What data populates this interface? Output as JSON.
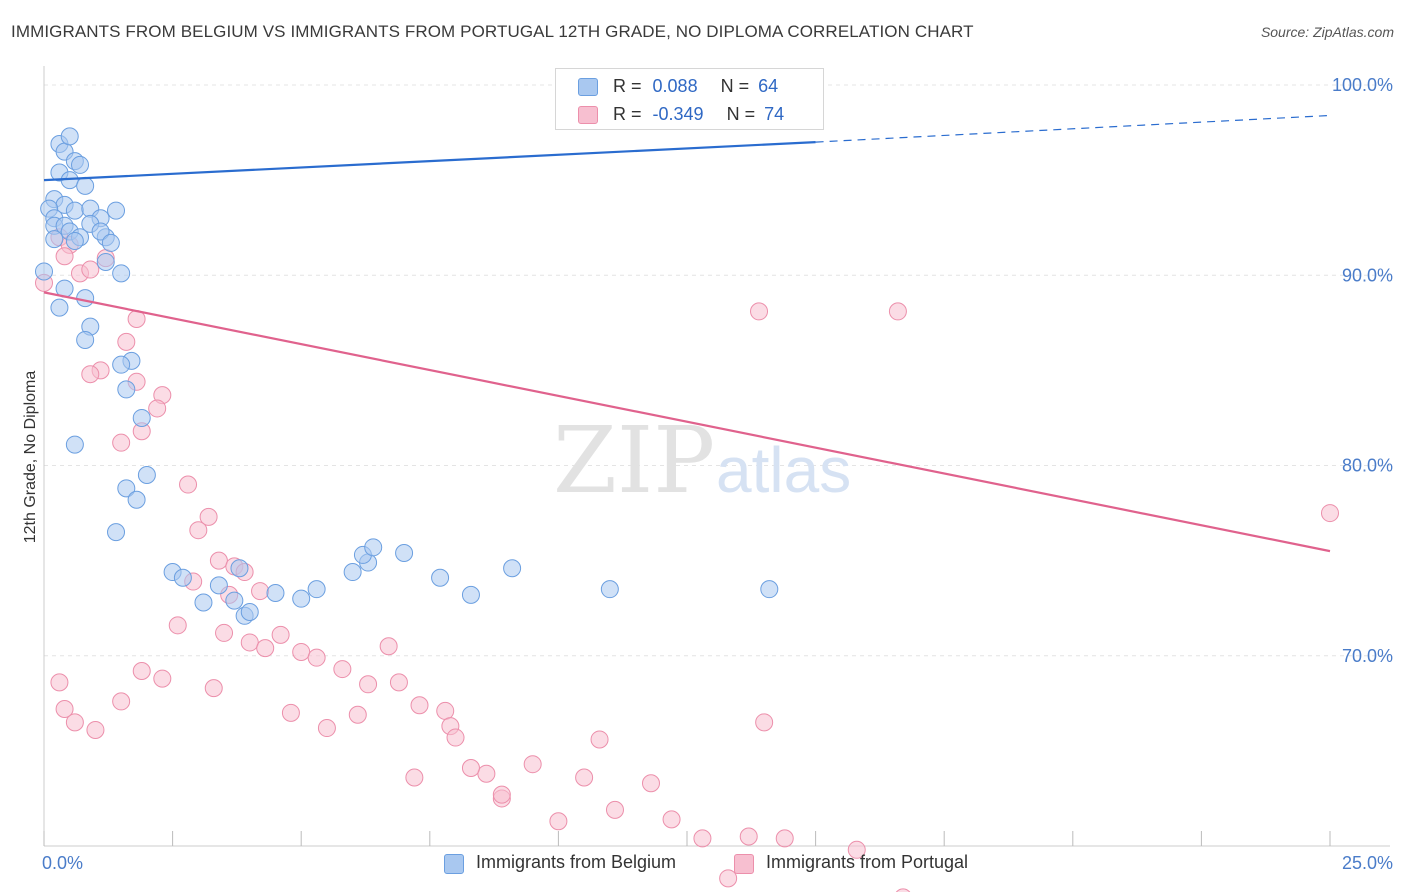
{
  "title": "IMMIGRANTS FROM BELGIUM VS IMMIGRANTS FROM PORTUGAL 12TH GRADE, NO DIPLOMA CORRELATION CHART",
  "source": "Source: ZipAtlas.com",
  "watermark": {
    "zip": "ZIP",
    "atlas": "atlas"
  },
  "colors": {
    "belgium_fill": "#a9c8f0",
    "belgium_stroke": "#6b9fe0",
    "belgium_line": "#2a6ccf",
    "portugal_fill": "#f7bfd0",
    "portugal_stroke": "#ec8fab",
    "portugal_line": "#e0628d",
    "tick_text": "#4a7cc9"
  },
  "legend": {
    "belgium": {
      "r_label": "R =",
      "r_value": "0.088",
      "n_label": "N =",
      "n_value": "64"
    },
    "portugal": {
      "r_label": "R =",
      "r_value": "-0.349",
      "n_label": "N =",
      "n_value": "74"
    }
  },
  "chart_data": {
    "type": "scatter",
    "title": "IMMIGRANTS FROM BELGIUM VS IMMIGRANTS FROM PORTUGAL 12TH GRADE, NO DIPLOMA CORRELATION CHART",
    "xlabel": "",
    "ylabel": "12th Grade, No Diploma",
    "xlim": [
      0,
      25
    ],
    "ylim": [
      60,
      101
    ],
    "x_tick_labels": [
      "0.0%",
      "25.0%"
    ],
    "y_ticks": [
      70,
      80,
      90,
      100
    ],
    "y_tick_labels": [
      "70.0%",
      "80.0%",
      "90.0%",
      "100.0%"
    ],
    "grid": true,
    "series": [
      {
        "name": "Immigrants from Belgium",
        "trend": {
          "x0": 0,
          "y0": 95.0,
          "x1": 15,
          "y1": 97.0,
          "dashed_to_x": 25,
          "dashed_to_y": 98.4
        },
        "points": [
          [
            0.3,
            96.9
          ],
          [
            0.4,
            96.5
          ],
          [
            0.5,
            97.3
          ],
          [
            0.6,
            96.0
          ],
          [
            0.7,
            95.8
          ],
          [
            0.3,
            95.4
          ],
          [
            0.5,
            95.0
          ],
          [
            0.8,
            94.7
          ],
          [
            0.2,
            94.0
          ],
          [
            0.4,
            93.7
          ],
          [
            0.6,
            93.4
          ],
          [
            0.9,
            93.5
          ],
          [
            1.1,
            93.0
          ],
          [
            0.9,
            92.7
          ],
          [
            1.2,
            92.0
          ],
          [
            1.4,
            93.4
          ],
          [
            0.1,
            93.5
          ],
          [
            0.2,
            93.0
          ],
          [
            0.2,
            92.6
          ],
          [
            0.4,
            92.6
          ],
          [
            0.5,
            92.3
          ],
          [
            0.7,
            92.0
          ],
          [
            0.6,
            91.8
          ],
          [
            0.2,
            91.9
          ],
          [
            1.1,
            92.3
          ],
          [
            1.3,
            91.7
          ],
          [
            1.5,
            90.1
          ],
          [
            1.2,
            90.7
          ],
          [
            0.4,
            89.3
          ],
          [
            0.8,
            88.8
          ],
          [
            0.3,
            88.3
          ],
          [
            0.9,
            87.3
          ],
          [
            0.8,
            86.6
          ],
          [
            1.7,
            85.5
          ],
          [
            1.5,
            85.3
          ],
          [
            1.6,
            84.0
          ],
          [
            1.9,
            82.5
          ],
          [
            0.6,
            81.1
          ],
          [
            2.0,
            79.5
          ],
          [
            1.6,
            78.8
          ],
          [
            1.8,
            78.2
          ],
          [
            1.4,
            76.5
          ],
          [
            2.5,
            74.4
          ],
          [
            2.7,
            74.1
          ],
          [
            3.1,
            72.8
          ],
          [
            3.4,
            73.7
          ],
          [
            3.9,
            72.1
          ],
          [
            3.7,
            72.9
          ],
          [
            4.0,
            72.3
          ],
          [
            5.0,
            73.0
          ],
          [
            4.5,
            73.3
          ],
          [
            5.3,
            73.5
          ],
          [
            6.0,
            74.4
          ],
          [
            3.8,
            74.6
          ],
          [
            6.3,
            74.9
          ],
          [
            6.2,
            75.3
          ],
          [
            6.4,
            75.7
          ],
          [
            7.0,
            75.4
          ],
          [
            7.7,
            74.1
          ],
          [
            8.3,
            73.2
          ],
          [
            9.1,
            74.6
          ],
          [
            11.0,
            73.5
          ],
          [
            14.1,
            73.5
          ],
          [
            0.0,
            90.2
          ]
        ]
      },
      {
        "name": "Immigrants from Portugal",
        "trend": {
          "x0": 0,
          "y0": 89.1,
          "x1": 25,
          "y1": 75.5
        },
        "points": [
          [
            0.3,
            92.0
          ],
          [
            0.5,
            91.6
          ],
          [
            0.4,
            91.0
          ],
          [
            0.7,
            90.1
          ],
          [
            0.9,
            90.3
          ],
          [
            1.2,
            90.9
          ],
          [
            1.8,
            87.7
          ],
          [
            1.6,
            86.5
          ],
          [
            1.1,
            85.0
          ],
          [
            0.9,
            84.8
          ],
          [
            1.8,
            84.4
          ],
          [
            2.3,
            83.7
          ],
          [
            2.2,
            83.0
          ],
          [
            1.9,
            81.8
          ],
          [
            1.5,
            81.2
          ],
          [
            2.8,
            79.0
          ],
          [
            3.2,
            77.3
          ],
          [
            3.0,
            76.6
          ],
          [
            3.4,
            75.0
          ],
          [
            3.7,
            74.7
          ],
          [
            3.9,
            74.4
          ],
          [
            4.2,
            73.4
          ],
          [
            2.9,
            73.9
          ],
          [
            3.6,
            73.2
          ],
          [
            2.6,
            71.6
          ],
          [
            3.5,
            71.2
          ],
          [
            4.6,
            71.1
          ],
          [
            4.0,
            70.7
          ],
          [
            4.3,
            70.4
          ],
          [
            5.0,
            70.2
          ],
          [
            5.3,
            69.9
          ],
          [
            5.8,
            69.3
          ],
          [
            6.7,
            70.5
          ],
          [
            6.3,
            68.5
          ],
          [
            6.9,
            68.6
          ],
          [
            7.3,
            67.4
          ],
          [
            7.8,
            67.1
          ],
          [
            7.9,
            66.3
          ],
          [
            8.0,
            65.7
          ],
          [
            8.6,
            63.8
          ],
          [
            8.9,
            62.5
          ],
          [
            10.0,
            61.3
          ],
          [
            10.5,
            63.6
          ],
          [
            11.1,
            61.9
          ],
          [
            12.2,
            61.4
          ],
          [
            11.8,
            63.3
          ],
          [
            12.8,
            60.4
          ],
          [
            13.7,
            60.5
          ],
          [
            14.0,
            66.5
          ],
          [
            13.3,
            58.3
          ],
          [
            14.4,
            60.4
          ],
          [
            15.1,
            56.8
          ],
          [
            16.7,
            57.3
          ],
          [
            15.8,
            59.8
          ],
          [
            6.1,
            66.9
          ],
          [
            8.3,
            64.1
          ],
          [
            8.9,
            62.7
          ],
          [
            9.5,
            64.3
          ],
          [
            10.8,
            65.6
          ],
          [
            7.2,
            63.6
          ],
          [
            5.5,
            66.2
          ],
          [
            4.8,
            67.0
          ],
          [
            3.3,
            68.3
          ],
          [
            2.3,
            68.8
          ],
          [
            1.9,
            69.2
          ],
          [
            1.5,
            67.6
          ],
          [
            1.0,
            66.1
          ],
          [
            0.6,
            66.5
          ],
          [
            0.4,
            67.2
          ],
          [
            0.3,
            68.6
          ],
          [
            13.9,
            88.1
          ],
          [
            16.6,
            88.1
          ],
          [
            25.0,
            77.5
          ],
          [
            0.0,
            89.6
          ]
        ]
      }
    ]
  },
  "bottom_legend": {
    "belgium_label": "Immigrants from Belgium",
    "portugal_label": "Immigrants from Portugal"
  }
}
